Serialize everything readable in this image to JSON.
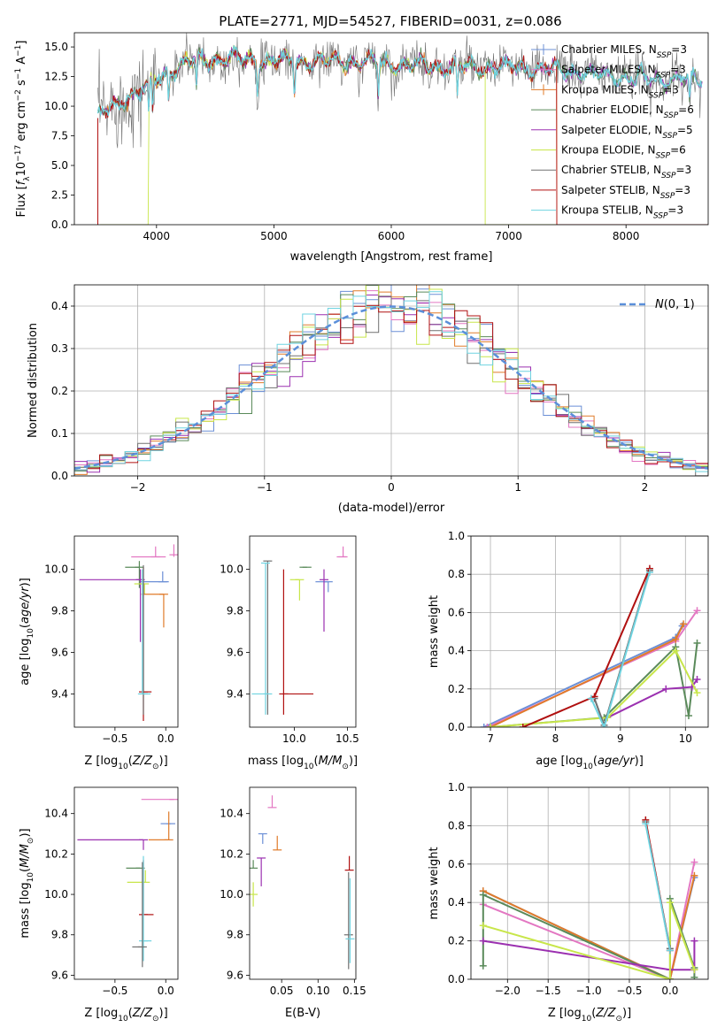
{
  "figure_title": "PLATE=2771, MJD=54527, FIBERID=0031, z=0.086",
  "colors": {
    "Chabrier MILES": "#6b8fd6",
    "Salpeter MILES": "#e377c2",
    "Kroupa MILES": "#e07b2a",
    "Chabrier ELODIE": "#5a8a5a",
    "Salpeter ELODIE": "#9b30b0",
    "Kroupa ELODIE": "#c8e64a",
    "Chabrier STELIB": "#707070",
    "Salpeter STELIB": "#b01010",
    "Kroupa STELIB": "#6fd3e0",
    "gaussian": "#5b8fd9"
  },
  "chart_data": [
    {
      "id": "spectrum",
      "type": "line",
      "title": "PLATE=2771, MJD=54527, FIBERID=0031, z=0.086",
      "xlabel": "wavelength [Angstrom, rest frame]",
      "ylabel": "Flux [f_λ 10^-17 erg cm^-2 s^-1 A^-1]",
      "xlim": [
        3300,
        8700
      ],
      "ylim": [
        0,
        16.2
      ],
      "xticks": [
        4000,
        5000,
        6000,
        7000,
        8000
      ],
      "yticks": [
        0.0,
        2.5,
        5.0,
        7.5,
        10.0,
        12.5,
        15.0
      ],
      "legend": "top-right",
      "continuum_points": [
        [
          3500,
          9.0
        ],
        [
          3700,
          10.5
        ],
        [
          3900,
          11.5
        ],
        [
          4100,
          13.0
        ],
        [
          4300,
          13.8
        ],
        [
          4600,
          14.0
        ],
        [
          5000,
          13.8
        ],
        [
          5500,
          13.8
        ],
        [
          6000,
          13.6
        ],
        [
          6500,
          13.3
        ],
        [
          7000,
          13.3
        ],
        [
          7500,
          13.0
        ],
        [
          8000,
          12.4
        ],
        [
          8500,
          12.2
        ]
      ],
      "series": [
        {
          "name": "Chabrier MILES, N_SSP=3",
          "label_main": "Chabrier MILES, N",
          "label_sub": "SSP",
          "label_tail": "=3"
        },
        {
          "name": "Salpeter MILES, N_SSP=3",
          "label_main": "Salpeter MILES, N",
          "label_sub": "SSP",
          "label_tail": "=3"
        },
        {
          "name": "Kroupa MILES, N_SSP=3",
          "label_main": "Kroupa MILES, N",
          "label_sub": "SSP",
          "label_tail": "=3"
        },
        {
          "name": "Chabrier ELODIE, N_SSP=6",
          "label_main": "Chabrier ELODIE, N",
          "label_sub": "SSP",
          "label_tail": "=6"
        },
        {
          "name": "Salpeter ELODIE, N_SSP=5",
          "label_main": "Salpeter ELODIE, N",
          "label_sub": "SSP",
          "label_tail": "=5"
        },
        {
          "name": "Kroupa ELODIE, N_SSP=6",
          "label_main": "Kroupa ELODIE, N",
          "label_sub": "SSP",
          "label_tail": "=6"
        },
        {
          "name": "Chabrier STELIB, N_SSP=3",
          "label_main": "Chabrier STELIB, N",
          "label_sub": "SSP",
          "label_tail": "=3"
        },
        {
          "name": "Salpeter STELIB, N_SSP=3",
          "label_main": "Salpeter STELIB, N",
          "label_sub": "SSP",
          "label_tail": "=3"
        },
        {
          "name": "Kroupa STELIB, N_SSP=3",
          "label_main": "Kroupa STELIB, N",
          "label_sub": "SSP",
          "label_tail": "=3"
        }
      ]
    },
    {
      "id": "residuals",
      "type": "histogram",
      "xlabel": "(data-model)/error",
      "ylabel": "Normed distribution",
      "xlim": [
        -2.5,
        2.5
      ],
      "ylim": [
        0,
        0.45
      ],
      "xticks": [
        -2,
        -1,
        0,
        1,
        2
      ],
      "yticks": [
        0.0,
        0.1,
        0.2,
        0.3,
        0.4
      ],
      "legend": "top-right",
      "gaussian_label": "N(0,1)",
      "bin_width": 0.1,
      "grid": true
    },
    {
      "id": "age_vs_Z",
      "type": "errorbar",
      "xlabel": "Z [log10(Z/Z⊙)]",
      "ylabel": "age [log10(age/yr)]",
      "xlim": [
        -0.9,
        0.12
      ],
      "ylim": [
        9.24,
        10.16
      ],
      "xticks": [
        -0.5,
        0.0
      ],
      "yticks": [
        9.4,
        9.6,
        9.8,
        10.0
      ],
      "points": [
        {
          "x": -0.26,
          "y": 10.01,
          "xerr": [
            0.14,
            0.0
          ],
          "yerr": [
            0.1,
            0.03
          ],
          "series": "Chabrier ELODIE"
        },
        {
          "x": -0.1,
          "y": 10.06,
          "xerr": [
            0.24,
            0.1
          ],
          "yerr": [
            0.0,
            0.05
          ],
          "series": "Salpeter MILES"
        },
        {
          "x": 0.08,
          "y": 10.07,
          "xerr": [
            0.0,
            0.0
          ],
          "yerr": [
            0.01,
            0.05
          ],
          "series": "Salpeter MILES"
        },
        {
          "x": -0.03,
          "y": 9.94,
          "xerr": [
            0.22,
            0.06
          ],
          "yerr": [
            0.0,
            0.05
          ],
          "series": "Chabrier MILES"
        },
        {
          "x": -0.25,
          "y": 9.95,
          "xerr": [
            0.6,
            0.0
          ],
          "yerr": [
            0.3,
            0.05
          ],
          "series": "Salpeter ELODIE"
        },
        {
          "x": -0.21,
          "y": 9.93,
          "xerr": [
            0.1,
            0.0
          ],
          "yerr": [
            0.05,
            0.0
          ],
          "series": "Kroupa ELODIE"
        },
        {
          "x": -0.02,
          "y": 9.88,
          "xerr": [
            0.22,
            0.0
          ],
          "yerr": [
            0.16,
            0.0
          ],
          "series": "Kroupa MILES"
        },
        {
          "x": -0.22,
          "y": 9.41,
          "xerr": [
            0.0,
            0.08
          ],
          "yerr": [
            0.14,
            0.6
          ],
          "series": "Salpeter STELIB"
        },
        {
          "x": -0.22,
          "y": 9.4,
          "xerr": [
            0.0,
            0.0
          ],
          "yerr": [
            0.1,
            0.62
          ],
          "series": "Chabrier STELIB"
        },
        {
          "x": -0.23,
          "y": 9.4,
          "xerr": [
            0.0,
            0.08
          ],
          "yerr": [
            0.0,
            0.6
          ],
          "series": "Kroupa STELIB"
        }
      ]
    },
    {
      "id": "age_vs_mass",
      "type": "errorbar",
      "xlabel": "mass [log10(M/M⊙)]",
      "ylabel": "",
      "xlim": [
        9.58,
        10.58
      ],
      "ylim": [
        9.24,
        10.16
      ],
      "xticks": [
        10.0,
        10.5
      ],
      "yticks": [
        9.4,
        9.6,
        9.8,
        10.0
      ],
      "points": [
        {
          "x": 9.75,
          "y": 10.04,
          "xerr": [
            0.0,
            0.0
          ],
          "yerr": [
            0.74,
            0.0
          ],
          "series": "Chabrier STELIB"
        },
        {
          "x": 9.73,
          "y": 10.03,
          "xerr": [
            0.0,
            0.0
          ],
          "yerr": [
            0.73,
            0.0
          ],
          "series": "Kroupa STELIB"
        },
        {
          "x": 10.12,
          "y": 10.01,
          "xerr": [
            0.07,
            0.0
          ],
          "yerr": [
            0.0,
            0.0
          ],
          "series": "Chabrier ELODIE"
        },
        {
          "x": 10.46,
          "y": 10.06,
          "xerr": [
            0.06,
            0.03
          ],
          "yerr": [
            0.0,
            0.05
          ],
          "series": "Salpeter MILES"
        },
        {
          "x": 10.32,
          "y": 9.94,
          "xerr": [
            0.12,
            0.0
          ],
          "yerr": [
            0.05,
            0.0
          ],
          "series": "Chabrier MILES"
        },
        {
          "x": 10.28,
          "y": 9.95,
          "xerr": [
            0.0,
            0.0
          ],
          "yerr": [
            0.25,
            0.05
          ],
          "series": "Salpeter ELODIE"
        },
        {
          "x": 10.05,
          "y": 9.95,
          "xerr": [
            0.09,
            0.0
          ],
          "yerr": [
            0.1,
            0.0
          ],
          "series": "Kroupa ELODIE"
        },
        {
          "x": 9.9,
          "y": 9.4,
          "xerr": [
            0.0,
            0.28
          ],
          "yerr": [
            0.1,
            0.6
          ],
          "series": "Salpeter STELIB"
        },
        {
          "x": 9.75,
          "y": 9.4,
          "xerr": [
            0.15,
            0.0
          ],
          "yerr": [
            0.0,
            0.0
          ],
          "series": "Kroupa STELIB"
        }
      ]
    },
    {
      "id": "mass_weight_vs_age",
      "type": "line",
      "xlabel": "age [log10(age/yr)]",
      "ylabel": "mass weight",
      "xlim": [
        6.7,
        10.35
      ],
      "ylim": [
        0,
        1
      ],
      "xticks": [
        7,
        8,
        9,
        10
      ],
      "yticks": [
        0.0,
        0.2,
        0.4,
        0.6,
        0.8,
        1.0
      ],
      "grid": true,
      "series": [
        {
          "name": "Chabrier MILES",
          "x": [
            6.9,
            9.85,
            9.95
          ],
          "y": [
            0.0,
            0.47,
            0.53
          ]
        },
        {
          "name": "Salpeter MILES",
          "x": [
            6.95,
            9.85,
            10.18
          ],
          "y": [
            0.0,
            0.45,
            0.61
          ]
        },
        {
          "name": "Kroupa MILES",
          "x": [
            7.0,
            9.85,
            9.97
          ],
          "y": [
            0.0,
            0.46,
            0.54
          ]
        },
        {
          "name": "Chabrier ELODIE",
          "x": [
            7.0,
            8.75,
            9.85,
            10.05,
            10.18
          ],
          "y": [
            0.0,
            0.05,
            0.42,
            0.06,
            0.44
          ]
        },
        {
          "name": "Salpeter ELODIE",
          "x": [
            8.8,
            9.7,
            10.1,
            10.18
          ],
          "y": [
            0.05,
            0.2,
            0.21,
            0.25
          ]
        },
        {
          "name": "Kroupa ELODIE",
          "x": [
            7.0,
            8.8,
            9.85,
            10.18
          ],
          "y": [
            0.0,
            0.05,
            0.4,
            0.18
          ]
        },
        {
          "name": "Chabrier STELIB",
          "x": [
            8.6,
            8.75,
            9.45
          ],
          "y": [
            0.15,
            0.01,
            0.82
          ]
        },
        {
          "name": "Salpeter STELIB",
          "x": [
            7.5,
            8.6,
            9.45
          ],
          "y": [
            0.0,
            0.16,
            0.83
          ]
        },
        {
          "name": "Kroupa STELIB",
          "x": [
            8.55,
            8.75,
            9.45
          ],
          "y": [
            0.15,
            0.0,
            0.81
          ]
        }
      ]
    },
    {
      "id": "mass_vs_Z",
      "type": "errorbar",
      "xlabel": "Z [log10(Z/Z⊙)]",
      "ylabel": "mass [log10(M/M⊙)]",
      "xlim": [
        -0.9,
        0.12
      ],
      "ylim": [
        9.58,
        10.53
      ],
      "xticks": [
        -0.5,
        0.0
      ],
      "yticks": [
        9.6,
        9.8,
        10.0,
        10.2,
        10.4
      ],
      "points": [
        {
          "x": 0.08,
          "y": 10.47,
          "xerr": [
            0.32,
            0.0
          ],
          "yerr": [
            0.0,
            0.0
          ],
          "series": "Salpeter MILES"
        },
        {
          "x": 0.05,
          "y": 10.35,
          "xerr": [
            0.1,
            0.0
          ],
          "yerr": [
            0.0,
            0.0
          ],
          "series": "Chabrier MILES"
        },
        {
          "x": -0.22,
          "y": 10.27,
          "xerr": [
            0.65,
            0.0
          ],
          "yerr": [
            0.05,
            0.0
          ],
          "series": "Salpeter ELODIE"
        },
        {
          "x": 0.03,
          "y": 10.27,
          "xerr": [
            0.2,
            0.0
          ],
          "yerr": [
            0.0,
            0.14
          ],
          "series": "Kroupa MILES"
        },
        {
          "x": -0.25,
          "y": 10.13,
          "xerr": [
            0.14,
            0.0
          ],
          "yerr": [
            0.0,
            0.0
          ],
          "series": "Chabrier ELODIE"
        },
        {
          "x": -0.2,
          "y": 10.06,
          "xerr": [
            0.18,
            0.0
          ],
          "yerr": [
            0.0,
            0.06
          ],
          "series": "Kroupa ELODIE"
        },
        {
          "x": -0.22,
          "y": 9.9,
          "xerr": [
            0.0,
            0.1
          ],
          "yerr": [
            0.0,
            0.27
          ],
          "series": "Salpeter STELIB"
        },
        {
          "x": -0.22,
          "y": 9.77,
          "xerr": [
            0.0,
            0.08
          ],
          "yerr": [
            0.1,
            0.42
          ],
          "series": "Kroupa STELIB"
        },
        {
          "x": -0.23,
          "y": 9.74,
          "xerr": [
            0.1,
            0.0
          ],
          "yerr": [
            0.1,
            0.42
          ],
          "series": "Chabrier STELIB"
        }
      ]
    },
    {
      "id": "mass_vs_EBV",
      "type": "errorbar",
      "xlabel": "E(B-V)",
      "ylabel": "",
      "xlim": [
        0.006,
        0.152
      ],
      "ylim": [
        9.58,
        10.53
      ],
      "xticks": [
        0.05,
        0.1,
        0.15
      ],
      "yticks": [
        9.6,
        9.8,
        10.0,
        10.2,
        10.4
      ],
      "points": [
        {
          "x": 0.037,
          "y": 10.43,
          "xerr": [
            0.0,
            0.0
          ],
          "yerr": [
            0.0,
            0.06
          ],
          "series": "Salpeter MILES"
        },
        {
          "x": 0.024,
          "y": 10.3,
          "xerr": [
            0.0,
            0.0
          ],
          "yerr": [
            0.05,
            0.0
          ],
          "series": "Chabrier MILES"
        },
        {
          "x": 0.022,
          "y": 10.18,
          "xerr": [
            0.0,
            0.0
          ],
          "yerr": [
            0.14,
            0.0
          ],
          "series": "Salpeter ELODIE"
        },
        {
          "x": 0.044,
          "y": 10.22,
          "xerr": [
            0.0,
            0.0
          ],
          "yerr": [
            0.0,
            0.07
          ],
          "series": "Kroupa MILES"
        },
        {
          "x": 0.011,
          "y": 10.13,
          "xerr": [
            0.0,
            0.0
          ],
          "yerr": [
            0.0,
            0.04
          ],
          "series": "Chabrier ELODIE"
        },
        {
          "x": 0.011,
          "y": 10.0,
          "xerr": [
            0.0,
            0.0
          ],
          "yerr": [
            0.06,
            0.06
          ],
          "series": "Kroupa ELODIE"
        },
        {
          "x": 0.143,
          "y": 10.12,
          "xerr": [
            0.0,
            0.0
          ],
          "yerr": [
            0.0,
            0.07
          ],
          "series": "Salpeter STELIB"
        },
        {
          "x": 0.142,
          "y": 9.8,
          "xerr": [
            0.0,
            0.0
          ],
          "yerr": [
            0.17,
            0.31
          ],
          "series": "Chabrier STELIB"
        },
        {
          "x": 0.144,
          "y": 9.78,
          "xerr": [
            0.0,
            0.0
          ],
          "yerr": [
            0.12,
            0.3
          ],
          "series": "Kroupa STELIB"
        }
      ]
    },
    {
      "id": "mass_weight_vs_Z",
      "type": "line",
      "xlabel": "Z [log10(Z/Z⊙)]",
      "ylabel": "mass weight",
      "xlim": [
        -2.45,
        0.47
      ],
      "ylim": [
        0,
        1
      ],
      "xticks": [
        -2.0,
        -1.5,
        -1.0,
        -0.5,
        0.0
      ],
      "yticks": [
        0.0,
        0.2,
        0.4,
        0.6,
        0.8,
        1.0
      ],
      "grid": true,
      "series": [
        {
          "name": "Chabrier MILES",
          "x": [
            -2.3,
            0.0,
            0.3
          ],
          "y": [
            0.46,
            0.0,
            0.53
          ]
        },
        {
          "name": "Salpeter MILES",
          "x": [
            -2.3,
            0.0,
            0.3
          ],
          "y": [
            0.39,
            0.0,
            0.61
          ]
        },
        {
          "name": "Kroupa MILES",
          "x": [
            -2.3,
            0.0,
            0.3
          ],
          "y": [
            0.46,
            0.0,
            0.54
          ]
        },
        {
          "name": "Chabrier ELODIE",
          "x": [
            -2.3,
            -2.3,
            0.0,
            0.0,
            0.3,
            0.3
          ],
          "y": [
            0.07,
            0.44,
            0.0,
            0.42,
            0.06,
            0.01
          ]
        },
        {
          "name": "Salpeter ELODIE",
          "x": [
            -2.3,
            0.0,
            0.3,
            0.3
          ],
          "y": [
            0.2,
            0.05,
            0.05,
            0.2
          ]
        },
        {
          "name": "Kroupa ELODIE",
          "x": [
            -2.3,
            0.0,
            0.0,
            0.3
          ],
          "y": [
            0.28,
            0.0,
            0.4,
            0.05
          ]
        },
        {
          "name": "Chabrier STELIB",
          "x": [
            -0.3,
            0.0
          ],
          "y": [
            0.82,
            0.16
          ]
        },
        {
          "name": "Salpeter STELIB",
          "x": [
            -0.3,
            0.0
          ],
          "y": [
            0.83,
            0.15
          ]
        },
        {
          "name": "Kroupa STELIB",
          "x": [
            -0.3,
            0.0
          ],
          "y": [
            0.81,
            0.15
          ]
        }
      ]
    }
  ]
}
